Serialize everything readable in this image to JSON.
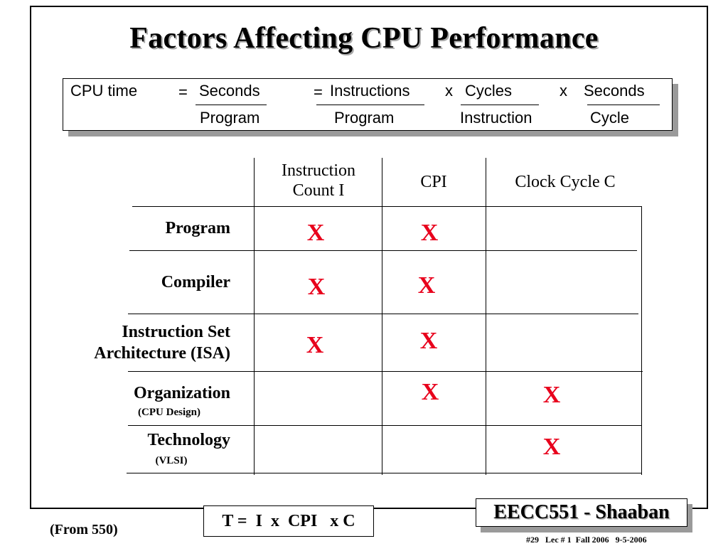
{
  "title": "Factors Affecting CPU Performance",
  "formula": {
    "cpu_time": "CPU time",
    "eq1": "=",
    "seconds_num": "Seconds",
    "program_den1": "Program",
    "eq2": "=",
    "instructions_num": "Instructions",
    "program_den2": "Program",
    "times1": "x",
    "cycles_num": "Cycles",
    "instruction_den": "Instruction",
    "times2": "x",
    "seconds_num2": "Seconds",
    "cycle_den": "Cycle"
  },
  "table": {
    "columns": [
      "Instruction\nCount I",
      "CPI",
      "Clock Cycle C"
    ],
    "rows": [
      {
        "label": "Program",
        "sub": "",
        "marks": [
          "X",
          "X",
          ""
        ]
      },
      {
        "label": "Compiler",
        "sub": "",
        "marks": [
          "X",
          "X",
          ""
        ]
      },
      {
        "label": "Instruction Set\nArchitecture (ISA)",
        "sub": "",
        "marks": [
          "X",
          "X",
          ""
        ]
      },
      {
        "label": "Organization",
        "sub": "(CPU Design)",
        "marks": [
          "",
          "X",
          "X"
        ]
      },
      {
        "label": "Technology",
        "sub": "(VLSI)",
        "marks": [
          "",
          "",
          "X"
        ]
      }
    ],
    "mark_color": "#e8001c"
  },
  "bottom": {
    "from": "(From 550)",
    "equation": "T =  I  x  CPI   x C",
    "badge": "EECC551 - Shaaban",
    "footer": "#29   Lec # 1  Fall 2006   9-5-2006"
  }
}
